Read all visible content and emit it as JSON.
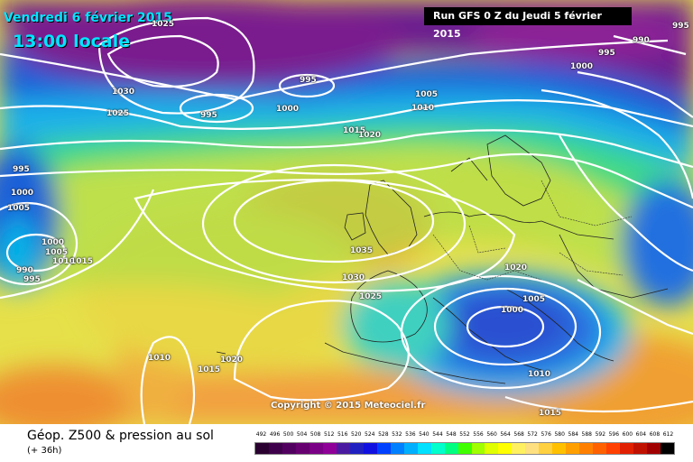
{
  "header": {
    "date": "Vendredi 6 février 2015",
    "local_time": "13:00 locale",
    "run": "Run GFS 0 Z du Jeudi 5 février 2015"
  },
  "map": {
    "copyright": "Copyright © 2015 Meteociel.fr",
    "isobar_labels": [
      "1025",
      "995",
      "990",
      "995",
      "1000",
      "1030",
      "1025",
      "995",
      "1000",
      "995",
      "1005",
      "1010",
      "1015",
      "1020",
      "995",
      "1000",
      "1005",
      "1000",
      "1005",
      "1010",
      "1015",
      "990",
      "995",
      "1035",
      "1030",
      "1025",
      "1020",
      "1005",
      "1000",
      "1010",
      "1015",
      "1020",
      "1010",
      "1015"
    ]
  },
  "footer": {
    "title": "Géop. Z500 & pression au sol",
    "subtitle": "(+ 36h)"
  },
  "legend": {
    "values": [
      "492",
      "496",
      "500",
      "504",
      "508",
      "512",
      "516",
      "520",
      "524",
      "528",
      "532",
      "536",
      "540",
      "544",
      "548",
      "552",
      "556",
      "560",
      "564",
      "568",
      "572",
      "576",
      "580",
      "584",
      "588",
      "592",
      "596",
      "600",
      "604",
      "608",
      "612"
    ],
    "colors": [
      "#2a0030",
      "#3e004a",
      "#520060",
      "#660070",
      "#7a0085",
      "#8f0099",
      "#4a1aa0",
      "#2020c0",
      "#1010e0",
      "#0040ff",
      "#0080ff",
      "#00b0ff",
      "#00e0ff",
      "#00ffcc",
      "#00ff80",
      "#40ff00",
      "#a0ff00",
      "#e0ff00",
      "#ffff00",
      "#fff060",
      "#ffe080",
      "#ffd040",
      "#ffc000",
      "#ffa000",
      "#ff8000",
      "#ff6000",
      "#ff4000",
      "#e02000",
      "#c01000",
      "#a00000",
      "#000000"
    ]
  }
}
